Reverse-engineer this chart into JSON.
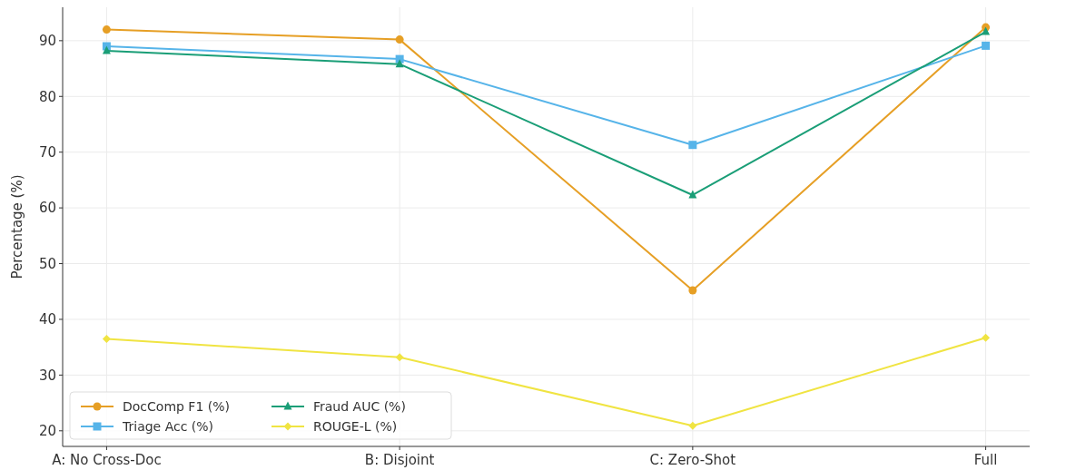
{
  "chart_data": {
    "type": "line",
    "ylabel": "Percentage (%)",
    "categories": [
      "A: No Cross-Doc",
      "B: Disjoint",
      "C: Zero-Shot",
      "Full"
    ],
    "series": [
      {
        "name": "DocComp F1 (%)",
        "color": "#e69f25",
        "marker": "circle",
        "values": [
          92.0,
          90.2,
          45.2,
          92.4
        ]
      },
      {
        "name": "Triage Acc (%)",
        "color": "#56b4e9",
        "marker": "square",
        "values": [
          89.0,
          86.7,
          71.3,
          89.1
        ]
      },
      {
        "name": "Fraud AUC (%)",
        "color": "#1a9e77",
        "marker": "triangle",
        "values": [
          88.2,
          85.8,
          62.3,
          91.6
        ]
      },
      {
        "name": "ROUGE-L (%)",
        "color": "#f0e442",
        "marker": "diamond",
        "values": [
          36.5,
          33.2,
          20.9,
          36.7
        ]
      }
    ],
    "ylim": [
      17.2,
      96
    ],
    "yticks": [
      20,
      30,
      40,
      50,
      60,
      70,
      80,
      90
    ],
    "grid": true,
    "legend": "bottom left"
  }
}
